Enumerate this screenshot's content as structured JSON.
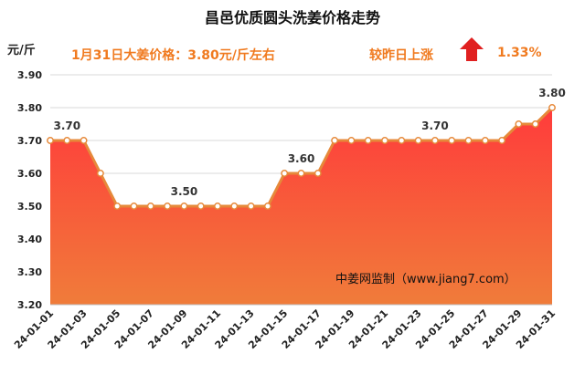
{
  "header": {
    "title": "昌邑优质圆头洗姜价格走势",
    "unit": "元/斤",
    "price_text": "1月31日大姜价格：3.80元/斤左右",
    "change_label": "较昨日上涨",
    "change_value": "1.33%",
    "change_direction": "up"
  },
  "watermark": "中姜网监制（www.jiang7.com）",
  "colors": {
    "line": "#e6893a",
    "marker_fill": "#ffffff",
    "area_top": "#ff3b3b",
    "area_bottom": "#f07c3a",
    "accent_text": "#f07a1f",
    "arrow": "#e02020"
  },
  "chart_data": {
    "type": "area",
    "title": "昌邑优质圆头洗姜价格走势",
    "ylabel": "元/斤",
    "xlabel": "",
    "ylim": [
      3.2,
      3.9
    ],
    "yticks": [
      "3.20",
      "3.30",
      "3.40",
      "3.50",
      "3.60",
      "3.70",
      "3.80",
      "3.90"
    ],
    "grid": true,
    "x": [
      "24-01-01",
      "24-01-02",
      "24-01-03",
      "24-01-04",
      "24-01-05",
      "24-01-06",
      "24-01-07",
      "24-01-08",
      "24-01-09",
      "24-01-10",
      "24-01-11",
      "24-01-12",
      "24-01-13",
      "24-01-14",
      "24-01-15",
      "24-01-16",
      "24-01-17",
      "24-01-18",
      "24-01-19",
      "24-01-20",
      "24-01-21",
      "24-01-22",
      "24-01-23",
      "24-01-24",
      "24-01-25",
      "24-01-26",
      "24-01-27",
      "24-01-28",
      "24-01-29",
      "24-01-30",
      "24-01-31"
    ],
    "xtick_labels": [
      "24-01-01",
      "24-01-03",
      "24-01-05",
      "24-01-07",
      "24-01-09",
      "24-01-11",
      "24-01-13",
      "24-01-15",
      "24-01-17",
      "24-01-19",
      "24-01-21",
      "24-01-23",
      "24-01-25",
      "24-01-27",
      "24-01-29",
      "24-01-31"
    ],
    "values": [
      3.7,
      3.7,
      3.7,
      3.6,
      3.5,
      3.5,
      3.5,
      3.5,
      3.5,
      3.5,
      3.5,
      3.5,
      3.5,
      3.5,
      3.6,
      3.6,
      3.6,
      3.7,
      3.7,
      3.7,
      3.7,
      3.7,
      3.7,
      3.7,
      3.7,
      3.7,
      3.7,
      3.7,
      3.75,
      3.75,
      3.8
    ],
    "data_labels": [
      {
        "index": 1,
        "text": "3.70"
      },
      {
        "index": 8,
        "text": "3.50"
      },
      {
        "index": 15,
        "text": "3.60"
      },
      {
        "index": 23,
        "text": "3.70"
      },
      {
        "index": 30,
        "text": "3.80"
      }
    ]
  }
}
